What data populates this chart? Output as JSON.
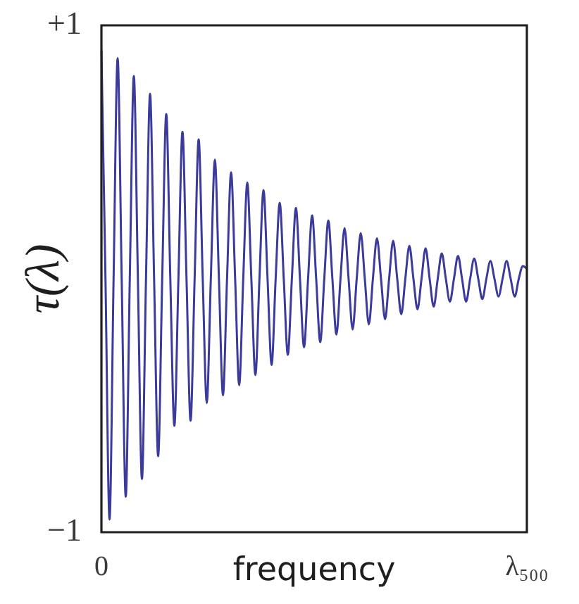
{
  "chart_data": {
    "type": "line",
    "ylabel": "τ(λ)",
    "xlabel": "frequency",
    "categories": [
      "0",
      null,
      null,
      null,
      null,
      null,
      null,
      null,
      null,
      null,
      null,
      null,
      null,
      null,
      null,
      null,
      null,
      null,
      null,
      null,
      null,
      null,
      null,
      null,
      null,
      null,
      null,
      null,
      null,
      null,
      null,
      null,
      null,
      null,
      null,
      null,
      null,
      null,
      null,
      null,
      null,
      null,
      null,
      null,
      null,
      null,
      null,
      null,
      null,
      null,
      null,
      null,
      null,
      null,
      null,
      null,
      null,
      null,
      null,
      null,
      null,
      null,
      null,
      null,
      null,
      null,
      null,
      null,
      null,
      null,
      null,
      null,
      null,
      null,
      null,
      null,
      null,
      null,
      null,
      null,
      null,
      null,
      null,
      null,
      null,
      null,
      null,
      null,
      null,
      null,
      null,
      null,
      null,
      null,
      null,
      null,
      null,
      null,
      null,
      null,
      null,
      null,
      null,
      null,
      null,
      "λ₅₀₀"
    ],
    "series": [
      {
        "color": "#3b3b9b",
        "values": [
          0.9,
          0,
          -0.95,
          0,
          0.87,
          0,
          -0.86,
          0,
          0.8,
          0,
          -0.79,
          0,
          0.73,
          0,
          -0.7,
          0,
          0.65,
          0,
          -0.58,
          0,
          0.58,
          0,
          -0.56,
          0,
          0.55,
          0,
          -0.49,
          0,
          0.47,
          0,
          -0.46,
          0,
          0.42,
          0,
          -0.42,
          0,
          0.38,
          0,
          -0.38,
          0,
          0.35,
          0,
          -0.34,
          0,
          0.3,
          0,
          -0.3,
          0,
          0.28,
          0,
          -0.27,
          0,
          0.25,
          0,
          -0.25,
          0,
          0.23,
          0,
          -0.22,
          0,
          0.2,
          0,
          -0.2,
          0,
          0.18,
          0,
          -0.18,
          0,
          0.16,
          0,
          -0.16,
          0,
          0.15,
          0,
          -0.14,
          0,
          0.13,
          0,
          -0.12,
          0,
          0.12,
          0,
          -0.11,
          0,
          0.1,
          0,
          -0.09,
          0,
          0.09,
          0,
          -0.09,
          0,
          0.08,
          0,
          -0.08,
          0,
          0.07,
          0,
          -0.07,
          0,
          0.07,
          0,
          -0.07,
          0,
          0.05,
          0.04
        ]
      }
    ],
    "ylim": [
      -1,
      1
    ],
    "yticks": [
      {
        "value": 1,
        "label": "+1"
      },
      {
        "value": -1,
        "label": "−1"
      }
    ],
    "marker": "none"
  }
}
